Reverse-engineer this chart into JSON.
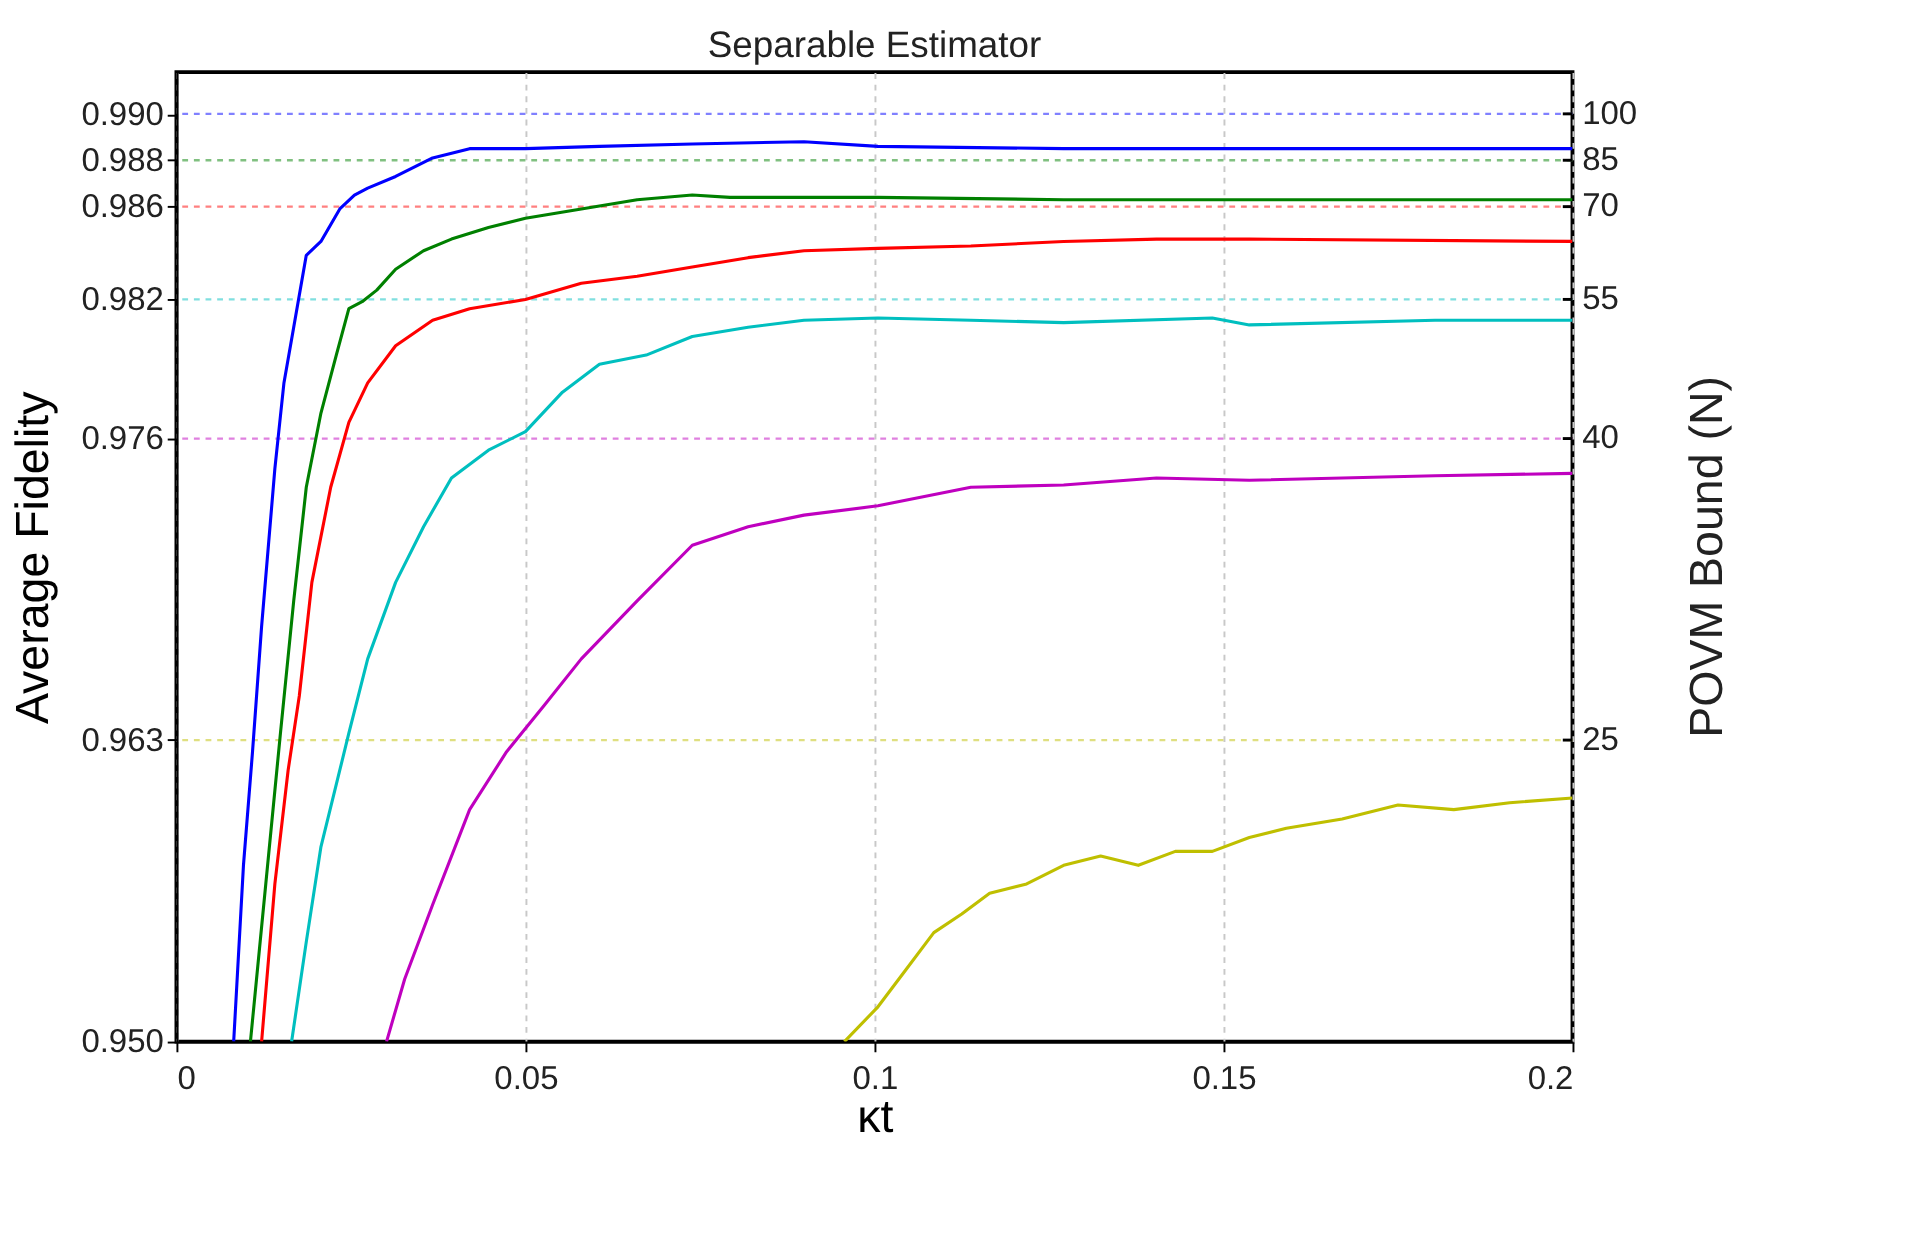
{
  "chart_data": {
    "type": "line",
    "title": "Separable Estimator",
    "xlabel": "κt",
    "ylabel": "Average Fidelity",
    "y2label": "POVM Bound  (N)",
    "xlim": [
      0,
      0.2
    ],
    "xticks": [
      0,
      0.05,
      0.1,
      0.15,
      0.2
    ],
    "ylim": [
      0.95,
      0.9918
    ],
    "yticks": [
      {
        "value": 0.95,
        "label": "0.950"
      },
      {
        "value": 0.963,
        "label": "0.963"
      },
      {
        "value": 0.976,
        "label": "0.976"
      },
      {
        "value": 0.982,
        "label": "0.982"
      },
      {
        "value": 0.986,
        "label": "0.986"
      },
      {
        "value": 0.988,
        "label": "0.988"
      },
      {
        "value": 0.99,
        "label": "0.990"
      }
    ],
    "grid": "x",
    "legend": false,
    "line_style": "solid",
    "marker": "none",
    "ref_lines": [
      {
        "axis": "y",
        "value": 0.99,
        "color": "#8080ff",
        "line_style": "dashed"
      },
      {
        "axis": "y",
        "value": 0.988,
        "color": "#80c080",
        "line_style": "dashed"
      },
      {
        "axis": "y",
        "value": 0.986,
        "color": "#ff8080",
        "line_style": "dashed"
      },
      {
        "axis": "y",
        "value": 0.982,
        "color": "#80dfdf",
        "line_style": "dashed"
      },
      {
        "axis": "y",
        "value": 0.976,
        "color": "#df80df",
        "line_style": "dashed"
      },
      {
        "axis": "y",
        "value": 0.963,
        "color": "#dfdf80",
        "line_style": "dashed"
      }
    ],
    "annotations": [
      "100",
      "85",
      "70",
      "55",
      "40",
      "25"
    ],
    "series": [
      {
        "color": "#0000ff",
        "x": [
          0.0082,
          0.0096,
          0.0109,
          0.0122,
          0.0141,
          0.0154,
          0.0168,
          0.0186,
          0.0207,
          0.0234,
          0.0255,
          0.0274,
          0.0314,
          0.0367,
          0.042,
          0.05,
          0.0606,
          0.0739,
          0.0899,
          0.1005,
          0.1271,
          0.1537,
          0.2
        ],
        "values": [
          0.95,
          0.9576,
          0.9625,
          0.9679,
          0.9747,
          0.9784,
          0.9808,
          0.9839,
          0.9845,
          0.9859,
          0.9865,
          0.9868,
          0.9873,
          0.9881,
          0.9885,
          0.9885,
          0.9886,
          0.9887,
          0.9888,
          0.9886,
          0.9885,
          0.9885,
          0.9885
        ]
      },
      {
        "color": "#008000",
        "x": [
          0.0106,
          0.0128,
          0.0149,
          0.0168,
          0.0186,
          0.0207,
          0.0229,
          0.0247,
          0.0266,
          0.0287,
          0.0314,
          0.0354,
          0.0394,
          0.0447,
          0.05,
          0.058,
          0.066,
          0.0739,
          0.0793,
          0.1005,
          0.1271,
          0.1537,
          0.2
        ],
        "values": [
          0.95,
          0.9568,
          0.9633,
          0.969,
          0.9739,
          0.9771,
          0.9796,
          0.9816,
          0.9819,
          0.9824,
          0.9833,
          0.9841,
          0.9846,
          0.9851,
          0.9855,
          0.9859,
          0.9863,
          0.9865,
          0.9864,
          0.9864,
          0.9863,
          0.9863,
          0.9863
        ]
      },
      {
        "color": "#ff0000",
        "x": [
          0.0122,
          0.0141,
          0.016,
          0.0176,
          0.0194,
          0.0221,
          0.0247,
          0.0274,
          0.0314,
          0.0367,
          0.042,
          0.05,
          0.058,
          0.066,
          0.0739,
          0.0819,
          0.0899,
          0.1005,
          0.1138,
          0.1271,
          0.1404,
          0.1537,
          0.2
        ],
        "values": [
          0.95,
          0.9568,
          0.9617,
          0.9649,
          0.9698,
          0.9739,
          0.9767,
          0.9784,
          0.98,
          0.9811,
          0.9816,
          0.982,
          0.9827,
          0.983,
          0.9834,
          0.9838,
          0.9841,
          0.9842,
          0.9843,
          0.9845,
          0.9846,
          0.9846,
          0.9845
        ]
      },
      {
        "color": "#00bfbf",
        "x": [
          0.0165,
          0.0186,
          0.0207,
          0.0234,
          0.0247,
          0.0274,
          0.0314,
          0.0354,
          0.0394,
          0.0447,
          0.05,
          0.0553,
          0.0606,
          0.0673,
          0.0739,
          0.0819,
          0.0899,
          0.1005,
          0.1138,
          0.1271,
          0.1484,
          0.1537,
          0.1803,
          0.2
        ],
        "values": [
          0.95,
          0.9543,
          0.9584,
          0.9617,
          0.9633,
          0.9665,
          0.9698,
          0.9722,
          0.9743,
          0.9755,
          0.9763,
          0.978,
          0.9792,
          0.9796,
          0.9804,
          0.9808,
          0.9811,
          0.9812,
          0.9811,
          0.981,
          0.9812,
          0.9809,
          0.9811,
          0.9811
        ]
      },
      {
        "color": "#bf00bf",
        "x": [
          0.0301,
          0.0327,
          0.0367,
          0.042,
          0.0473,
          0.0527,
          0.058,
          0.066,
          0.0739,
          0.0819,
          0.0899,
          0.1005,
          0.1138,
          0.1271,
          0.1404,
          0.1537,
          0.1803,
          0.2
        ],
        "values": [
          0.95,
          0.9527,
          0.9559,
          0.96,
          0.9625,
          0.9645,
          0.9665,
          0.969,
          0.9714,
          0.9722,
          0.9727,
          0.9731,
          0.9739,
          0.974,
          0.9743,
          0.9742,
          0.9744,
          0.9745
        ]
      },
      {
        "color": "#bfbf00",
        "x": [
          0.0957,
          0.1005,
          0.1045,
          0.1085,
          0.1125,
          0.1165,
          0.1218,
          0.1271,
          0.1324,
          0.1378,
          0.1431,
          0.1484,
          0.1537,
          0.159,
          0.167,
          0.175,
          0.183,
          0.191,
          0.2
        ],
        "values": [
          0.95,
          0.9515,
          0.9531,
          0.9547,
          0.9555,
          0.9564,
          0.9568,
          0.9576,
          0.958,
          0.9576,
          0.9582,
          0.9582,
          0.9588,
          0.9592,
          0.9596,
          0.9602,
          0.96,
          0.9603,
          0.9605
        ]
      }
    ]
  }
}
